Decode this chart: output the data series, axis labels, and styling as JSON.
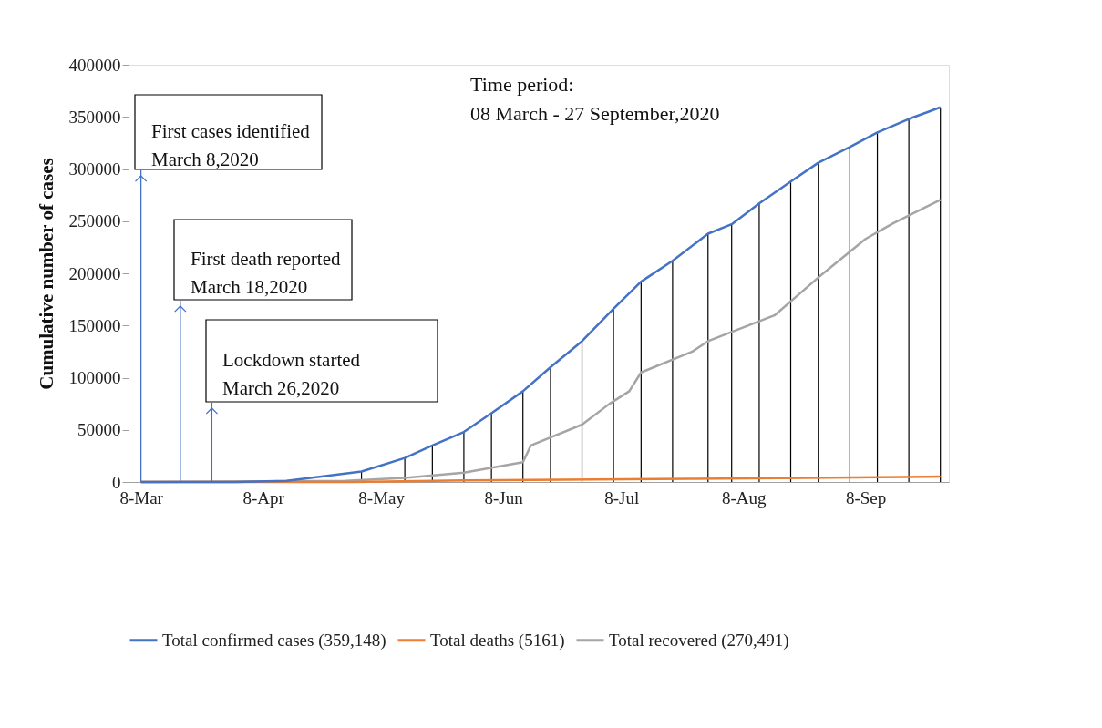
{
  "chart_data": {
    "type": "line",
    "ylabel": "Cumulative number of cases",
    "xlim": [
      "2020-03-06",
      "2020-09-28"
    ],
    "xticks": [
      {
        "value": "2020-03-08",
        "label": "8-Mar"
      },
      {
        "value": "2020-04-08",
        "label": "8-Apr"
      },
      {
        "value": "2020-05-08",
        "label": "8-May"
      },
      {
        "value": "2020-06-08",
        "label": "8-Jun"
      },
      {
        "value": "2020-07-08",
        "label": "8-Jul"
      },
      {
        "value": "2020-08-08",
        "label": "8-Aug"
      },
      {
        "value": "2020-09-08",
        "label": "8-Sep"
      }
    ],
    "ylim": [
      0,
      400000
    ],
    "yticks": [
      0,
      50000,
      100000,
      150000,
      200000,
      250000,
      300000,
      350000,
      400000
    ],
    "grid": false,
    "legend": "bottom",
    "series": [
      {
        "name": "Total confirmed cases (359,148)",
        "color": "#4472c4",
        "x": [
          "2020-03-08",
          "2020-04-01",
          "2020-04-14",
          "2020-05-03",
          "2020-05-14",
          "2020-05-21",
          "2020-05-29",
          "2020-06-05",
          "2020-06-13",
          "2020-06-20",
          "2020-06-28",
          "2020-07-06",
          "2020-07-13",
          "2020-07-21",
          "2020-07-30",
          "2020-08-05",
          "2020-08-12",
          "2020-08-20",
          "2020-08-27",
          "2020-09-04",
          "2020-09-11",
          "2020-09-19",
          "2020-09-27"
        ],
        "values": [
          0,
          0,
          1000,
          10000,
          23000,
          35000,
          48000,
          66000,
          87000,
          110000,
          135000,
          166000,
          192000,
          212000,
          238000,
          247000,
          267000,
          288000,
          306000,
          321000,
          335000,
          348000,
          359148
        ]
      },
      {
        "type": "bar",
        "color": "#000000",
        "x": [
          "2020-04-14",
          "2020-05-03",
          "2020-05-14",
          "2020-05-21",
          "2020-05-29",
          "2020-06-05",
          "2020-06-13",
          "2020-06-20",
          "2020-06-28",
          "2020-07-06",
          "2020-07-13",
          "2020-07-21",
          "2020-07-30",
          "2020-08-05",
          "2020-08-12",
          "2020-08-20",
          "2020-08-27",
          "2020-09-04",
          "2020-09-11",
          "2020-09-19",
          "2020-09-27"
        ],
        "values": [
          1000,
          10000,
          23000,
          35000,
          48000,
          66000,
          87000,
          110000,
          135000,
          166000,
          192000,
          212000,
          238000,
          247000,
          267000,
          288000,
          306000,
          321000,
          335000,
          348000,
          359148
        ]
      },
      {
        "name": "Total deaths (5161)",
        "color": "#ed7d31",
        "x": [
          "2020-03-08",
          "2020-05-01",
          "2020-05-30",
          "2020-07-25",
          "2020-08-24",
          "2020-09-27"
        ],
        "values": [
          0,
          0,
          1500,
          3000,
          4000,
          5161
        ]
      },
      {
        "name": "Total recovered (270,491)",
        "color": "#a5a5a5",
        "x": [
          "2020-03-08",
          "2020-04-29",
          "2020-05-14",
          "2020-05-29",
          "2020-06-13",
          "2020-06-15",
          "2020-06-28",
          "2020-07-05",
          "2020-07-10",
          "2020-07-13",
          "2020-07-26",
          "2020-07-30",
          "2020-08-16",
          "2020-08-27",
          "2020-09-08",
          "2020-09-15",
          "2020-09-27"
        ],
        "values": [
          0,
          1000,
          4000,
          9000,
          19000,
          35000,
          55000,
          75000,
          87000,
          105000,
          125000,
          135000,
          160000,
          196000,
          233000,
          248000,
          270491
        ]
      }
    ],
    "annotations": [
      "Time period:\n08 March - 27 September,2020",
      {
        "text": "First cases identified\nMarch 8,2020",
        "x": "2020-03-08",
        "y": 0
      },
      {
        "text": "First death reported\nMarch 18,2020",
        "x": "2020-03-18",
        "y": 0
      },
      {
        "text": "Lockdown started\nMarch 26,2020",
        "x": "2020-03-26",
        "y": 0
      }
    ]
  }
}
